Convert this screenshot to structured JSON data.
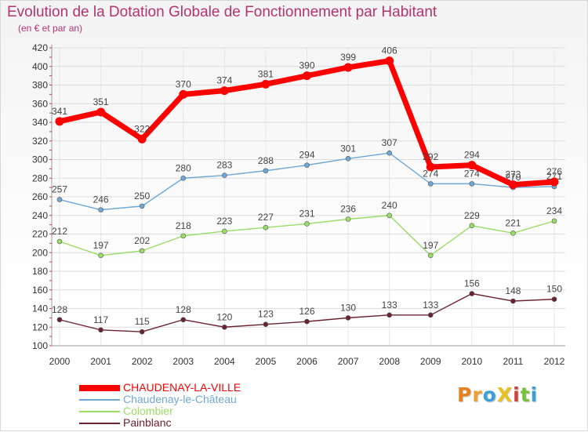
{
  "title": "Evolution de la Dotation Globale de Fonctionnement par Habitant",
  "subtitle": "(en € et par an)",
  "logo": {
    "text": "ProXiti",
    "colors": [
      "#e8801e",
      "#f0a030",
      "#3aa0d8",
      "#e8c020",
      "#d04040",
      "#7abf3a",
      "#3aa0d8"
    ]
  },
  "chart_data": {
    "type": "line",
    "x": [
      "2000",
      "2001",
      "2002",
      "2003",
      "2004",
      "2005",
      "2006",
      "2007",
      "2008",
      "2009",
      "2010",
      "2011",
      "2012"
    ],
    "ylim": [
      100,
      420
    ],
    "yticks": [
      100,
      120,
      140,
      160,
      180,
      200,
      220,
      240,
      260,
      280,
      300,
      320,
      340,
      360,
      380,
      400,
      420
    ],
    "grid": true,
    "legend_position": "bottom-left",
    "series": [
      {
        "name": "CHAUDENAY-LA-VILLE",
        "color": "#ff0000",
        "values": [
          341,
          351,
          322,
          370,
          374,
          381,
          390,
          399,
          406,
          292,
          294,
          273,
          276
        ]
      },
      {
        "name": "Chaudenay-le-Château",
        "color": "#6fa8d6",
        "values": [
          257,
          246,
          250,
          280,
          283,
          288,
          294,
          301,
          307,
          274,
          274,
          270,
          271
        ]
      },
      {
        "name": "Colombier",
        "color": "#99dd66",
        "values": [
          212,
          197,
          202,
          218,
          223,
          227,
          231,
          236,
          240,
          197,
          229,
          221,
          234
        ]
      },
      {
        "name": "Painblanc",
        "color": "#6b2230",
        "values": [
          128,
          117,
          115,
          128,
          120,
          123,
          126,
          130,
          133,
          133,
          156,
          148,
          150
        ]
      }
    ]
  }
}
